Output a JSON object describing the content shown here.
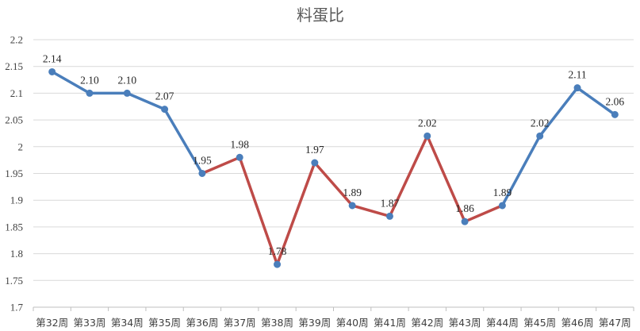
{
  "chart_data": {
    "type": "line",
    "title": "料蛋比",
    "xlabel": "",
    "ylabel": "",
    "ylim": [
      1.7,
      2.2
    ],
    "ytick_step": 0.05,
    "ytick_labels": [
      "1.7",
      "1.75",
      "1.8",
      "1.85",
      "1.9",
      "1.95",
      "2",
      "2.05",
      "2.1",
      "2.15",
      "2.2"
    ],
    "categories": [
      "第32周",
      "第33周",
      "第34周",
      "第35周",
      "第36周",
      "第37周",
      "第38周",
      "第39周",
      "第40周",
      "第41周",
      "第42周",
      "第43周",
      "第44周",
      "第45周",
      "第46周",
      "第47周"
    ],
    "values": [
      2.14,
      2.1,
      2.1,
      2.07,
      1.95,
      1.98,
      1.78,
      1.97,
      1.89,
      1.87,
      2.02,
      1.86,
      1.89,
      2.02,
      2.11,
      2.06
    ],
    "data_labels": [
      "2.14",
      "2.10",
      "2.10",
      "2.07",
      "1.95",
      "1.98",
      "1.78",
      "1.97",
      "1.89",
      "1.87",
      "2.02",
      "1.86",
      "1.89",
      "2.02",
      "2.11",
      "2.06"
    ],
    "segments": [
      {
        "from": 0,
        "to": 4,
        "color": "#4a7ebb"
      },
      {
        "from": 4,
        "to": 12,
        "color": "#be4b48"
      },
      {
        "from": 12,
        "to": 15,
        "color": "#4a7ebb"
      }
    ],
    "marker_color": "#4a7ebb",
    "grid": true,
    "legend": "none"
  }
}
